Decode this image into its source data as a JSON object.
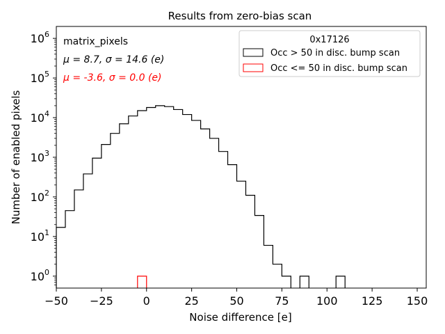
{
  "chart_data": {
    "type": "histogram",
    "title": "Results from zero-bias scan",
    "xlabel": "Noise difference [e]",
    "ylabel": "Number of enabled pixels",
    "xlim": [
      -50,
      155
    ],
    "ylim": [
      0.5,
      2000000
    ],
    "yscale": "log",
    "xticks": [
      -50,
      -25,
      0,
      25,
      50,
      75,
      100,
      125,
      150
    ],
    "xtick_labels": [
      "−50",
      "−25",
      "0",
      "25",
      "50",
      "75",
      "100",
      "125",
      "150"
    ],
    "yticks": [
      {
        "base": "10",
        "exp": "0",
        "value": 1
      },
      {
        "base": "10",
        "exp": "1",
        "value": 10
      },
      {
        "base": "10",
        "exp": "2",
        "value": 100
      },
      {
        "base": "10",
        "exp": "3",
        "value": 1000
      },
      {
        "base": "10",
        "exp": "4",
        "value": 10000
      },
      {
        "base": "10",
        "exp": "5",
        "value": 100000
      },
      {
        "base": "10",
        "exp": "6",
        "value": 1000000
      }
    ],
    "bin_width": 5,
    "annotations": {
      "label": "matrix_pixels",
      "stats_black": "μ = 8.7, σ = 14.6 (e)",
      "stats_red": "μ = -3.6, σ = 0.0 (e)"
    },
    "legend": {
      "title": "0x17126",
      "placement": "top-right"
    },
    "series": [
      {
        "name": "Occ > 50 in disc. bump scan",
        "color": "#000000",
        "bins": [
          [
            -50,
            17
          ],
          [
            -45,
            45
          ],
          [
            -40,
            150
          ],
          [
            -35,
            380
          ],
          [
            -30,
            950
          ],
          [
            -25,
            2100
          ],
          [
            -20,
            4000
          ],
          [
            -15,
            7000
          ],
          [
            -10,
            11000
          ],
          [
            -5,
            15000
          ],
          [
            0,
            18000
          ],
          [
            5,
            20000
          ],
          [
            10,
            19000
          ],
          [
            15,
            16000
          ],
          [
            20,
            12000
          ],
          [
            25,
            8500
          ],
          [
            30,
            5200
          ],
          [
            35,
            3000
          ],
          [
            40,
            1400
          ],
          [
            45,
            650
          ],
          [
            50,
            250
          ],
          [
            55,
            110
          ],
          [
            60,
            34
          ],
          [
            65,
            6
          ],
          [
            70,
            2
          ],
          [
            75,
            1
          ],
          [
            85,
            1
          ],
          [
            105,
            1
          ]
        ]
      },
      {
        "name": "Occ <= 50 in disc. bump scan",
        "color": "#ff0000",
        "bins": [
          [
            -5,
            1
          ]
        ]
      }
    ]
  }
}
